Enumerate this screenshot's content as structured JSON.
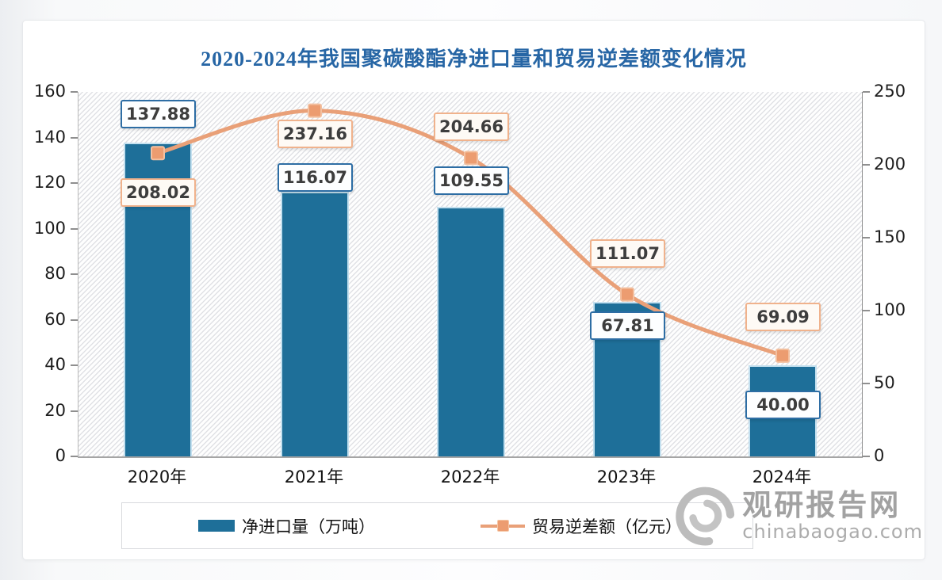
{
  "title": "2020-2024年我国聚碳酸酯净进口量和贸易逆差额变化情况",
  "chart_data": {
    "type": "bar",
    "overlay": "line",
    "title": "2020-2024年我国聚碳酸酯净进口量和贸易逆差额变化情况",
    "categories": [
      "2020年",
      "2021年",
      "2022年",
      "2023年",
      "2024年"
    ],
    "series": [
      {
        "name": "净进口量（万吨）",
        "type": "bar",
        "axis": "left",
        "color": "#1E6F99",
        "values": [
          137.88,
          116.07,
          109.55,
          67.81,
          40.0
        ]
      },
      {
        "name": "贸易逆差额（亿元）",
        "type": "line",
        "axis": "right",
        "color": "#E9A078",
        "marker": "square",
        "values": [
          208.02,
          237.16,
          204.66,
          111.07,
          69.09
        ]
      }
    ],
    "left_axis": {
      "min": 0,
      "max": 160,
      "step": 20
    },
    "right_axis": {
      "min": 0,
      "max": 250,
      "step": 50
    },
    "grid": "off",
    "plot_background": "diagonal-hatch",
    "legend_position": "bottom"
  },
  "legend": {
    "items": [
      {
        "label": "净进口量（万吨）",
        "swatch": "bar",
        "color": "#1E6F99"
      },
      {
        "label": "贸易逆差额（亿元）",
        "swatch": "line-square-marker",
        "color": "#E9A078"
      }
    ]
  },
  "watermark": {
    "site_name": "观研报告网",
    "site_url": "chinabaogao.com",
    "logo": "spiral-logo-icon"
  },
  "colors": {
    "title_text": "#2766A5",
    "bar_fill": "#1E6F99",
    "line_stroke": "#E9A078",
    "bar_label_border": "#2D6DA4",
    "line_label_border": "#F0B28C",
    "label_text": "#3D3D3D",
    "watermark_gray": "#a2a2a2"
  }
}
